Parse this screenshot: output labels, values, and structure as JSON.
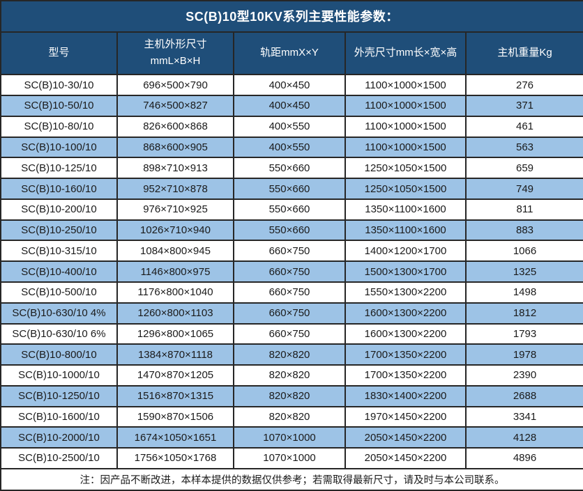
{
  "title": "SC(B)10型10KV系列主要性能参数：",
  "table": {
    "columns": [
      {
        "label": "型号"
      },
      {
        "label": "主机外形尺寸",
        "label2": "mmL×B×H"
      },
      {
        "label": "轨距mmX×Y"
      },
      {
        "label": "外壳尺寸mm长×宽×高"
      },
      {
        "label": "主机重量Kg"
      }
    ],
    "rows": [
      [
        "SC(B)10-30/10",
        "696×500×790",
        "400×450",
        "1100×1000×1500",
        "276"
      ],
      [
        "SC(B)10-50/10",
        "746×500×827",
        "400×450",
        "1100×1000×1500",
        "371"
      ],
      [
        "SC(B)10-80/10",
        "826×600×868",
        "400×550",
        "1100×1000×1500",
        "461"
      ],
      [
        "SC(B)10-100/10",
        "868×600×905",
        "400×550",
        "1100×1000×1500",
        "563"
      ],
      [
        "SC(B)10-125/10",
        "898×710×913",
        "550×660",
        "1250×1050×1500",
        "659"
      ],
      [
        "SC(B)10-160/10",
        "952×710×878",
        "550×660",
        "1250×1050×1500",
        "749"
      ],
      [
        "SC(B)10-200/10",
        "976×710×925",
        "550×660",
        "1350×1100×1600",
        "811"
      ],
      [
        "SC(B)10-250/10",
        "1026×710×940",
        "550×660",
        "1350×1100×1600",
        "883"
      ],
      [
        "SC(B)10-315/10",
        "1084×800×945",
        "660×750",
        "1400×1200×1700",
        "1066"
      ],
      [
        "SC(B)10-400/10",
        "1146×800×975",
        "660×750",
        "1500×1300×1700",
        "1325"
      ],
      [
        "SC(B)10-500/10",
        "1176×800×1040",
        "660×750",
        "1550×1300×2200",
        "1498"
      ],
      [
        "SC(B)10-630/10 4%",
        "1260×800×1103",
        "660×750",
        "1600×1300×2200",
        "1812"
      ],
      [
        "SC(B)10-630/10 6%",
        "1296×800×1065",
        "660×750",
        "1600×1300×2200",
        "1793"
      ],
      [
        "SC(B)10-800/10",
        "1384×870×1118",
        "820×820",
        "1700×1350×2200",
        "1978"
      ],
      [
        "SC(B)10-1000/10",
        "1470×870×1205",
        "820×820",
        "1700×1350×2200",
        "2390"
      ],
      [
        "SC(B)10-1250/10",
        "1516×870×1315",
        "820×820",
        "1830×1400×2200",
        "2688"
      ],
      [
        "SC(B)10-1600/10",
        "1590×870×1506",
        "820×820",
        "1970×1450×2200",
        "3341"
      ],
      [
        "SC(B)10-2000/10",
        "1674×1050×1651",
        "1070×1000",
        "2050×1450×2200",
        "4128"
      ],
      [
        "SC(B)10-2500/10",
        "1756×1050×1768",
        "1070×1000",
        "2050×1450×2200",
        "4896"
      ]
    ],
    "note": "注：因产品不断改进，本样本提供的数据仅供参考；若需取得最新尺寸，请及时与本公司联系。"
  },
  "colors": {
    "header_bg": "#1F4E79",
    "header_text": "#FFFFFF",
    "stripe_bg": "#9DC3E6",
    "row_bg": "#FFFFFF",
    "border": "#262626",
    "body_text": "#1A1A1A"
  }
}
